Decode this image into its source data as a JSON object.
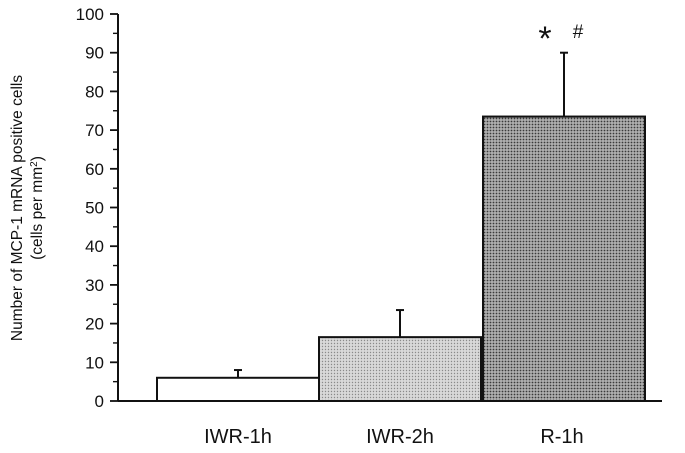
{
  "chart_data": {
    "type": "bar",
    "categories": [
      "IWR-1h",
      "IWR-2h",
      "R-1h"
    ],
    "values": [
      6,
      16.5,
      73.5
    ],
    "error_upper": [
      8,
      23.5,
      90
    ],
    "bar_fills": [
      "#ffffff",
      "#c4c4c4",
      "#9a9a9a"
    ],
    "ylim": [
      0,
      100
    ],
    "yticks": [
      "0",
      "10",
      "20",
      "30",
      "40",
      "50",
      "60",
      "70",
      "80",
      "90",
      "100"
    ],
    "ylabel_line1": "Number of MCP-1 mRNA positive cells",
    "ylabel_line2_pre": "(cells per mm",
    "ylabel_line2_sup": "2",
    "ylabel_line2_post": ")",
    "annotations": [
      "*",
      "#"
    ],
    "grid": false,
    "legend": "none"
  }
}
